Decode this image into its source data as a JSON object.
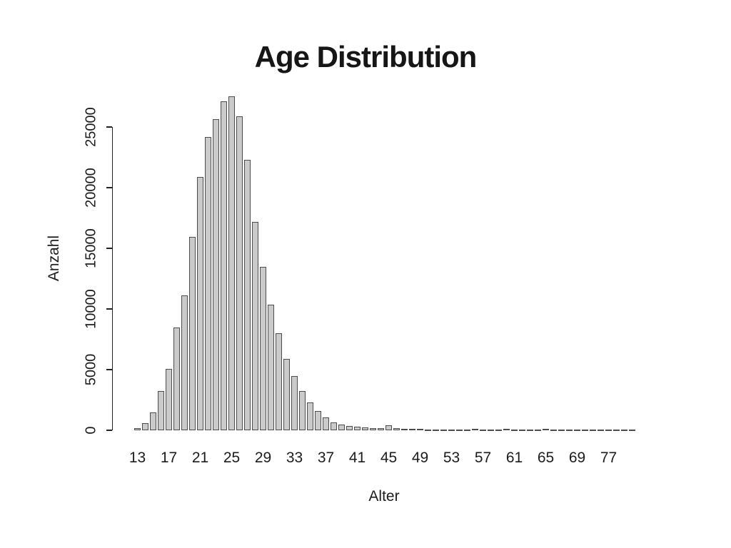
{
  "title": "Age Distribution",
  "y_axis": {
    "label": "Anzahl",
    "ticks": [
      0,
      5000,
      10000,
      15000,
      20000,
      25000
    ]
  },
  "x_axis": {
    "label": "Alter",
    "ticks": [
      {
        "slot": 0,
        "label": "13"
      },
      {
        "slot": 4,
        "label": "17"
      },
      {
        "slot": 8,
        "label": "21"
      },
      {
        "slot": 12,
        "label": "25"
      },
      {
        "slot": 16,
        "label": "29"
      },
      {
        "slot": 20,
        "label": "33"
      },
      {
        "slot": 24,
        "label": "37"
      },
      {
        "slot": 28,
        "label": "41"
      },
      {
        "slot": 32,
        "label": "45"
      },
      {
        "slot": 36,
        "label": "49"
      },
      {
        "slot": 40,
        "label": "53"
      },
      {
        "slot": 44,
        "label": "57"
      },
      {
        "slot": 48,
        "label": "61"
      },
      {
        "slot": 52,
        "label": "65"
      },
      {
        "slot": 56,
        "label": "69"
      },
      {
        "slot": 60,
        "label": "77"
      }
    ]
  },
  "colors": {
    "background": "#ffffff",
    "bar_fill": "#cacaca",
    "bar_border": "#4c4c4c",
    "axis": "#222222",
    "text": "#1c1c1c",
    "title": "#161616"
  },
  "chart_data": {
    "type": "bar",
    "title": "Age Distribution",
    "xlabel": "Alter",
    "ylabel": "Anzahl",
    "ylim": [
      0,
      27600
    ],
    "y_ticks": [
      0,
      5000,
      10000,
      15000,
      20000,
      25000
    ],
    "x_tick_labels_shown": [
      "13",
      "17",
      "21",
      "25",
      "29",
      "33",
      "37",
      "41",
      "45",
      "49",
      "53",
      "57",
      "61",
      "65",
      "69",
      "77"
    ],
    "legend": "none",
    "grid": false,
    "categories": [
      "13",
      "14",
      "15",
      "16",
      "17",
      "18",
      "19",
      "20",
      "21",
      "22",
      "23",
      "24",
      "25",
      "26",
      "27",
      "28",
      "29",
      "30",
      "31",
      "32",
      "33",
      "34",
      "35",
      "36",
      "37",
      "38",
      "39",
      "40",
      "41",
      "42",
      "43",
      "44",
      "45",
      "46",
      "47",
      "48",
      "49",
      "50",
      "51",
      "52",
      "53",
      "54",
      "55",
      "56",
      "57",
      "58",
      "59",
      "60",
      "61",
      "62",
      "63",
      "64",
      "65",
      "66",
      "67",
      "68",
      "69",
      "70",
      "71",
      "72",
      "77",
      "78",
      "79",
      "80"
    ],
    "values": [
      170,
      600,
      1450,
      3230,
      5080,
      8450,
      11100,
      15950,
      20900,
      24200,
      25650,
      27100,
      27530,
      25900,
      22300,
      17200,
      13480,
      10350,
      8000,
      5900,
      4450,
      3230,
      2300,
      1590,
      1060,
      650,
      450,
      350,
      290,
      230,
      190,
      160,
      430,
      160,
      130,
      110,
      95,
      85,
      80,
      75,
      85,
      70,
      80,
      90,
      75,
      70,
      85,
      110,
      75,
      70,
      80,
      85,
      120,
      75,
      70,
      80,
      75,
      85,
      70,
      80,
      75,
      70,
      80,
      70
    ]
  }
}
